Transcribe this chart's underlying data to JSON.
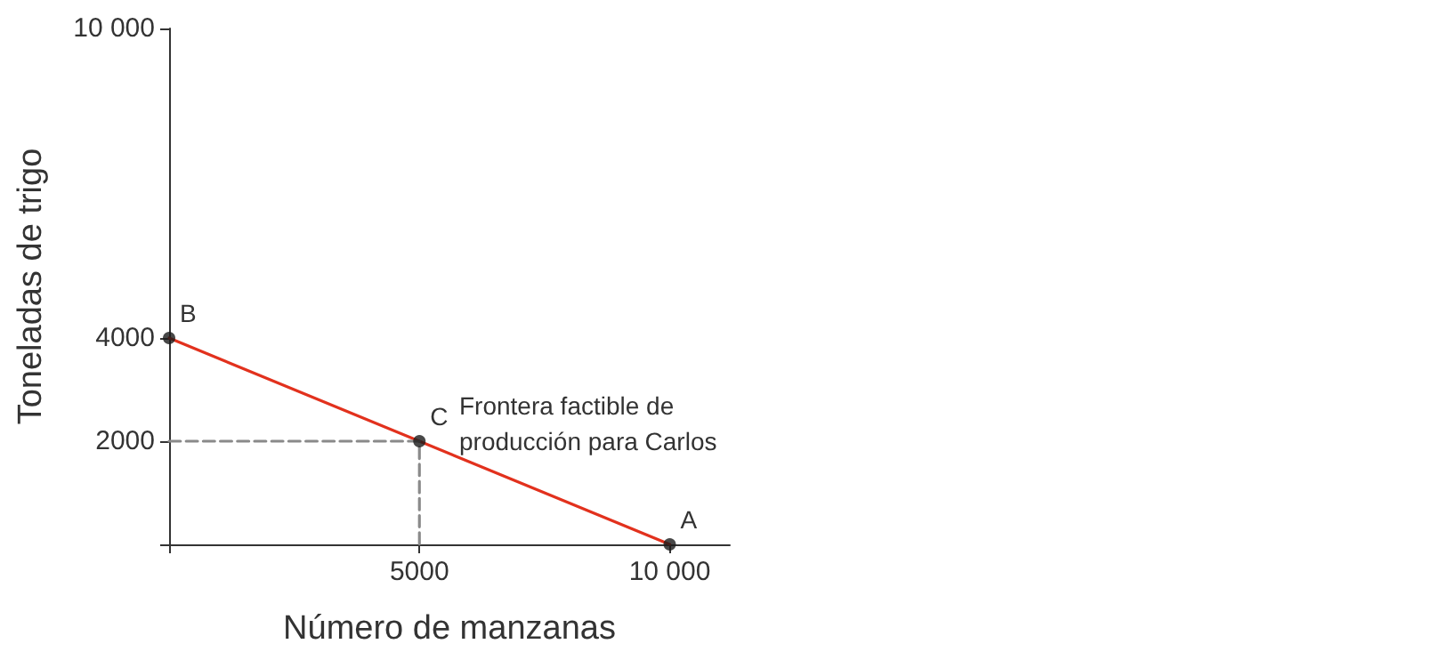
{
  "chart_data": {
    "type": "line",
    "xlabel": "Número de manzanas",
    "ylabel": "Toneladas de trigo",
    "xlim": [
      0,
      11200
    ],
    "ylim": [
      0,
      10000
    ],
    "xticks": [
      {
        "value": 0,
        "label": null
      },
      5000,
      {
        "value": 10000,
        "label": "10 000"
      }
    ],
    "yticks": [
      {
        "value": 0,
        "label": null
      },
      2000,
      4000,
      {
        "value": 10000,
        "label": "10 000"
      }
    ],
    "grid": false,
    "series": [
      {
        "color": "#e2311d",
        "x": [
          0,
          10000
        ],
        "values": [
          4000,
          0
        ],
        "marker": "none",
        "line_style": "solid"
      },
      {
        "type": "line",
        "color": "#8a8a8a",
        "x": [
          0,
          5000,
          5000
        ],
        "values": [
          2000,
          2000,
          0
        ],
        "marker": "none",
        "line_style": "dashed"
      },
      {
        "type": "scatter",
        "color": "#1a1a1a",
        "x": [
          0,
          5000,
          10000
        ],
        "values": [
          4000,
          2000,
          0
        ],
        "marker": "circle"
      }
    ],
    "annotations": [
      {
        "text": "A",
        "x": 10000,
        "y": 0
      },
      {
        "text": "B",
        "x": 0,
        "y": 4000
      },
      {
        "text": "C",
        "x": 5000,
        "y": 2000
      },
      "Frontera factible de\nproducción para Carlos"
    ]
  }
}
